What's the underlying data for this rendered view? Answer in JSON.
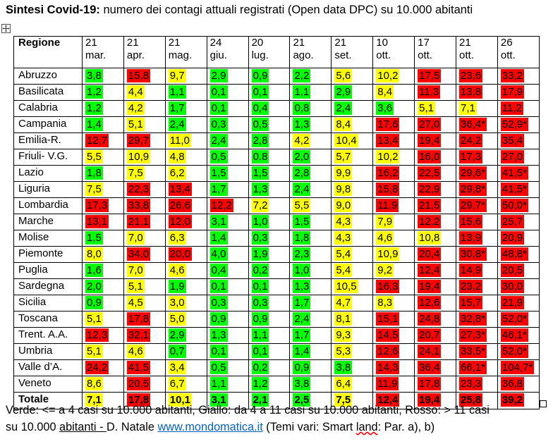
{
  "title": {
    "bold": "Sintesi Covid-19:",
    "rest": "numero dei contagi attuali registrati (Open data DPC) su 10.000 abitanti"
  },
  "table": {
    "header_region": "Regione",
    "dates": [
      {
        "day": "21",
        "month": "mar."
      },
      {
        "day": "21",
        "month": "apr."
      },
      {
        "day": "21",
        "month": "mag."
      },
      {
        "day": "24",
        "month": "giu."
      },
      {
        "day": "20",
        "month": "lug."
      },
      {
        "day": "21",
        "month": "ago."
      },
      {
        "day": "21",
        "month": "set."
      },
      {
        "day": "10",
        "month": "ott."
      },
      {
        "day": "17",
        "month": "ott."
      },
      {
        "day": "21",
        "month": "ott."
      },
      {
        "day": "26",
        "month": "ott."
      }
    ],
    "rows": [
      {
        "name": "Abruzzo",
        "values": [
          "3,8",
          "15,8",
          "9,7",
          "2,9",
          "0,9",
          "2,2",
          "5,6",
          "10,2",
          "17,5",
          "23,6",
          "33,2"
        ],
        "colors": [
          "g",
          "r",
          "y",
          "g",
          "g",
          "g",
          "y",
          "y",
          "r",
          "r",
          "r"
        ]
      },
      {
        "name": "Basilicata",
        "values": [
          "1,2",
          "4,4",
          "1,1",
          "0,1",
          "0,1",
          "1,1",
          "2,9",
          "8,4",
          "11,3",
          "13,8",
          "17,9"
        ],
        "colors": [
          "g",
          "y",
          "g",
          "g",
          "g",
          "g",
          "g",
          "y",
          "r",
          "r",
          "r"
        ]
      },
      {
        "name": "Calabria",
        "values": [
          "1,2",
          "4,2",
          "1,7",
          "0,1",
          "0,4",
          "0,8",
          "2,4",
          "3,6",
          "5,1",
          "7,1",
          "11,2"
        ],
        "colors": [
          "g",
          "y",
          "g",
          "g",
          "g",
          "g",
          "g",
          "g",
          "y",
          "y",
          "r"
        ]
      },
      {
        "name": "Campania",
        "values": [
          "1,4",
          "5,1",
          "2,4",
          "0,3",
          "0,5",
          "1,3",
          "8,4",
          "17,6",
          "27,0",
          "36,4*",
          "52,9*"
        ],
        "colors": [
          "g",
          "y",
          "g",
          "g",
          "g",
          "g",
          "y",
          "r",
          "r",
          "r",
          "r"
        ]
      },
      {
        "name": "Emilia-R.",
        "values": [
          "12,7",
          "29,7",
          "11,0",
          "2,4",
          "2,8",
          "4,2",
          "10,4",
          "13,4",
          "19,4",
          "24,2",
          "35,4"
        ],
        "colors": [
          "r",
          "r",
          "y",
          "g",
          "g",
          "y",
          "y",
          "r",
          "r",
          "r",
          "r"
        ]
      },
      {
        "name": "Friuli- V.G.",
        "values": [
          "5,5",
          "10,9",
          "4,8",
          "0,5",
          "0.8",
          "2,0",
          "5,7",
          "10,2",
          "16,0",
          "17,3",
          "27,0"
        ],
        "colors": [
          "y",
          "y",
          "y",
          "g",
          "g",
          "g",
          "y",
          "y",
          "r",
          "r",
          "r"
        ]
      },
      {
        "name": "Lazio",
        "values": [
          "1,8",
          "7,5",
          "6,2",
          "1,5",
          "1,5",
          "2,8",
          "9,9",
          "16,2",
          "22,5",
          "29,6*",
          "41,5*"
        ],
        "colors": [
          "g",
          "y",
          "y",
          "g",
          "g",
          "g",
          "y",
          "r",
          "r",
          "r",
          "r"
        ]
      },
      {
        "name": "Liguria",
        "values": [
          "7,5",
          "22,3",
          "13,4",
          "1,7",
          "1,3",
          "2,4",
          "9,8",
          "15,8",
          "22,9",
          "29,8*",
          "41,5*"
        ],
        "colors": [
          "y",
          "r",
          "r",
          "g",
          "g",
          "g",
          "y",
          "r",
          "r",
          "r",
          "r"
        ]
      },
      {
        "name": "Lombardia",
        "values": [
          "17,3",
          "33,8",
          "26,6",
          "12,2",
          "7,2",
          "5,5",
          "9,0",
          "11,9",
          "21,5",
          "29,7*",
          "50,0*"
        ],
        "colors": [
          "r",
          "r",
          "r",
          "r",
          "y",
          "y",
          "y",
          "r",
          "r",
          "r",
          "r"
        ]
      },
      {
        "name": "Marche",
        "values": [
          "13,1",
          "21,1",
          "12,0",
          "3,1",
          "1,0",
          "1,5",
          "4,3",
          "7,9",
          "12,2",
          "15,6",
          "25,7"
        ],
        "colors": [
          "r",
          "r",
          "r",
          "g",
          "g",
          "g",
          "y",
          "y",
          "r",
          "r",
          "r"
        ]
      },
      {
        "name": "Molise",
        "values": [
          "1,5",
          "7,0",
          "6,3",
          "1,4",
          "0,3",
          "1,8",
          "4,3",
          "4,6",
          "10,8",
          "13,9",
          "20,9"
        ],
        "colors": [
          "g",
          "y",
          "y",
          "g",
          "g",
          "g",
          "y",
          "y",
          "y",
          "r",
          "r"
        ]
      },
      {
        "name": "Piemonte",
        "values": [
          "8,0",
          "34,0",
          "20,0",
          "4,0",
          "1,9",
          "2,3",
          "5,4",
          "10,9",
          "20,4",
          "30,8*",
          "48,8*"
        ],
        "colors": [
          "y",
          "r",
          "r",
          "g",
          "g",
          "g",
          "y",
          "y",
          "r",
          "r",
          "r"
        ]
      },
      {
        "name": "Puglia",
        "values": [
          "1,6",
          "7,0",
          "4,6",
          "0,4",
          "0,2",
          "1,0",
          "5,4",
          "9,2",
          "12,4",
          "14,9",
          "20,5"
        ],
        "colors": [
          "g",
          "y",
          "y",
          "g",
          "g",
          "g",
          "y",
          "y",
          "r",
          "r",
          "r"
        ]
      },
      {
        "name": "Sardegna",
        "values": [
          "2,0",
          "5,1",
          "1,9",
          "0,1",
          "0,1",
          "1,3",
          "10,5",
          "16,3",
          "19,4",
          "23,2",
          "30,0"
        ],
        "colors": [
          "g",
          "y",
          "g",
          "g",
          "g",
          "g",
          "y",
          "r",
          "r",
          "r",
          "r"
        ]
      },
      {
        "name": "Sicilia",
        "values": [
          "0,9",
          "4,5",
          "3,0",
          "0,3",
          "0,3",
          "1,7",
          "4,7",
          "8,3",
          "12,6",
          "15,7",
          "21,9"
        ],
        "colors": [
          "g",
          "y",
          "y",
          "g",
          "g",
          "g",
          "y",
          "y",
          "r",
          "r",
          "r"
        ]
      },
      {
        "name": "Toscana",
        "values": [
          "5,1",
          "17,8",
          "5,0",
          "0,9",
          "0,9",
          "2,4",
          "8,1",
          "15,1",
          "24,8",
          "32,8*",
          "52,0*"
        ],
        "colors": [
          "y",
          "r",
          "y",
          "g",
          "g",
          "g",
          "y",
          "r",
          "r",
          "r",
          "r"
        ]
      },
      {
        "name": "Trent. A.A.",
        "values": [
          "12,3",
          "32,1",
          "2,9",
          "1,3",
          "1,1",
          "1,7",
          "9,3",
          "14,5",
          "20,7",
          "27,3*",
          "46,1*"
        ],
        "colors": [
          "r",
          "r",
          "g",
          "g",
          "g",
          "g",
          "y",
          "r",
          "r",
          "r",
          "r"
        ]
      },
      {
        "name": "Umbria",
        "values": [
          "5,1",
          "4,6",
          "0,7",
          "0,1",
          "0,1",
          "1,4",
          "5,3",
          "12,6",
          "24,1",
          "33,5*",
          "52,0*"
        ],
        "colors": [
          "y",
          "y",
          "g",
          "g",
          "g",
          "g",
          "y",
          "r",
          "r",
          "r",
          "r"
        ]
      },
      {
        "name": "Valle d’A.",
        "values": [
          "24,2",
          "41,5",
          "3,4",
          "0,5",
          "0,2",
          "0,9",
          "3,8",
          "14,3",
          "36,4",
          "66,1*",
          "104,7*"
        ],
        "colors": [
          "r",
          "r",
          "y",
          "g",
          "g",
          "g",
          "g",
          "r",
          "r",
          "r",
          "r"
        ]
      },
      {
        "name": "Veneto",
        "values": [
          "8,6",
          "20,5",
          "6,7",
          "1,1",
          "1,2",
          "3,8",
          "6,4",
          "11,9",
          "17,8",
          "23,3",
          "36,8"
        ],
        "colors": [
          "y",
          "r",
          "y",
          "g",
          "g",
          "g",
          "y",
          "r",
          "r",
          "r",
          "r"
        ]
      }
    ],
    "total": {
      "name": "Totale",
      "values": [
        "7,1",
        "17,8",
        "10,1",
        "3,1",
        "2,1",
        "2,5",
        "7,5",
        "12,4",
        "19,4",
        "25,8",
        "39,2"
      ],
      "colors": [
        "y",
        "r",
        "y",
        "g",
        "g",
        "g",
        "y",
        "r",
        "r",
        "r",
        "r"
      ]
    }
  },
  "colors": {
    "green": "#00ff00",
    "yellow": "#ffff00",
    "red": "#ff0000",
    "link": "#0563c1"
  },
  "footer": {
    "line1": "Verde: <= a 4 casi su 10.000 abitanti, Giallo: da 4 a 11 casi su 10.000 abitanti, Rosso: > 11 casi",
    "line2_start": "su 10.000 ",
    "line2_underlined": "abitanti  - ",
    "line2_author": "D. Natale ",
    "line2_link": "www.mondomatica.it",
    "line2_mid": " (Temi vari: Smart ",
    "line2_wavy": "land",
    "line2_end": ": Par. a), b)"
  },
  "icons": {
    "move_handle": "move-handle-icon",
    "resize_handle": "resize-handle-icon"
  }
}
